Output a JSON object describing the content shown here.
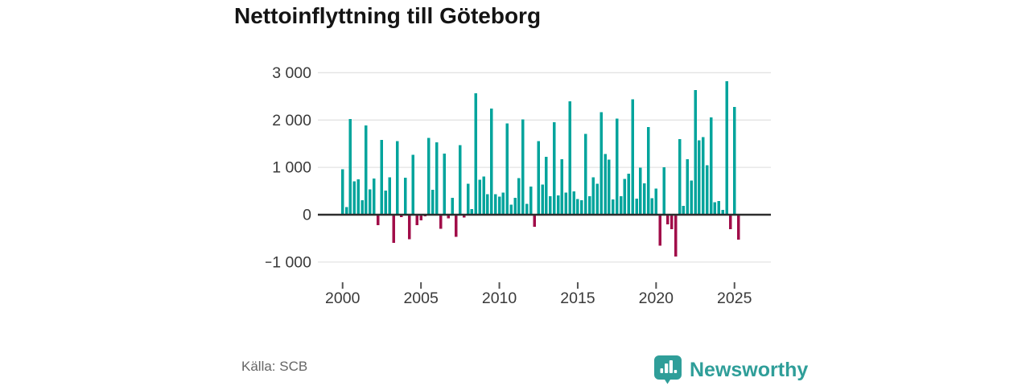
{
  "header": {
    "title": "Nettoinflyttning till Göteborg"
  },
  "footer": {
    "source": "Källa: SCB",
    "brand": "Newsworthy"
  },
  "chart_data": {
    "type": "bar",
    "title": "Nettoinflyttning till Göteborg",
    "frequency": "quarterly",
    "x_tick_years": [
      2000,
      2005,
      2010,
      2015,
      2020,
      2025
    ],
    "x_tick_labels": [
      "2000",
      "2005",
      "2010",
      "2015",
      "2020",
      "2025"
    ],
    "y_ticks": [
      3000,
      2000,
      1000,
      0,
      -1000
    ],
    "y_tick_labels": [
      "3 000",
      "2 000",
      "1 000",
      "0",
      "−1 000"
    ],
    "ylim": [
      -1250,
      3100
    ],
    "grid": true,
    "legend": "none",
    "colors": {
      "positive": "#00a49c",
      "negative": "#a10d49"
    },
    "series": [
      {
        "name": "Nettoinflyttning",
        "data": [
          {
            "year": 2000,
            "q": [
              960,
              160,
              2020,
              705
            ]
          },
          {
            "year": 2001,
            "q": [
              745,
              310,
              1890,
              535
            ]
          },
          {
            "year": 2002,
            "q": [
              765,
              -225,
              1580,
              510
            ]
          },
          {
            "year": 2003,
            "q": [
              790,
              -595,
              1555,
              -55
            ]
          },
          {
            "year": 2004,
            "q": [
              780,
              -520,
              1265,
              -225
            ]
          },
          {
            "year": 2005,
            "q": [
              -120,
              -30,
              1620,
              525
            ]
          },
          {
            "year": 2006,
            "q": [
              1530,
              -300,
              1290,
              -80
            ]
          },
          {
            "year": 2007,
            "q": [
              360,
              -465,
              1470,
              -60
            ]
          },
          {
            "year": 2008,
            "q": [
              655,
              120,
              2565,
              740
            ]
          },
          {
            "year": 2009,
            "q": [
              810,
              430,
              2240,
              435
            ]
          },
          {
            "year": 2010,
            "q": [
              380,
              470,
              1925,
              210
            ]
          },
          {
            "year": 2011,
            "q": [
              355,
              775,
              2010,
              230
            ]
          },
          {
            "year": 2012,
            "q": [
              595,
              -255,
              1555,
              640
            ]
          },
          {
            "year": 2013,
            "q": [
              1225,
              395,
              1950,
              405
            ]
          },
          {
            "year": 2014,
            "q": [
              1175,
              465,
              2395,
              490
            ]
          },
          {
            "year": 2015,
            "q": [
              330,
              310,
              1710,
              395
            ]
          },
          {
            "year": 2016,
            "q": [
              790,
              650,
              2165,
              1285
            ]
          },
          {
            "year": 2017,
            "q": [
              1160,
              320,
              2030,
              395
            ]
          },
          {
            "year": 2018,
            "q": [
              755,
              865,
              2435,
              340
            ]
          },
          {
            "year": 2019,
            "q": [
              990,
              660,
              1850,
              350
            ]
          },
          {
            "year": 2020,
            "q": [
              550,
              -650,
              1000,
              -200
            ]
          },
          {
            "year": 2021,
            "q": [
              -310,
              -880,
              1600,
              185
            ]
          },
          {
            "year": 2022,
            "q": [
              1175,
              720,
              2630,
              1570
            ]
          },
          {
            "year": 2023,
            "q": [
              1640,
              1045,
              2055,
              265
            ]
          },
          {
            "year": 2024,
            "q": [
              290,
              100,
              2820,
              -305
            ]
          },
          {
            "year": 2025,
            "q": [
              2280,
              -530
            ]
          }
        ]
      }
    ]
  }
}
